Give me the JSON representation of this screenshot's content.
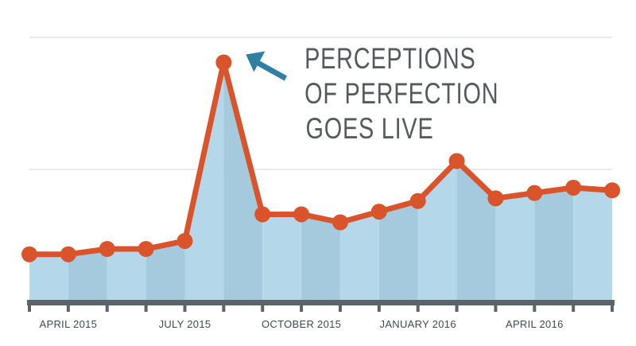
{
  "chart_data": {
    "type": "area",
    "title": "",
    "xlabel": "",
    "ylabel": "",
    "x": [
      "2015-03",
      "2015-04",
      "2015-05",
      "2015-06",
      "2015-07",
      "2015-08",
      "2015-09",
      "2015-10",
      "2015-11",
      "2015-12",
      "2016-01",
      "2016-02",
      "2016-03",
      "2016-04",
      "2016-05",
      "2016-06"
    ],
    "values": [
      18,
      18,
      20,
      20,
      23,
      90,
      33,
      33,
      30,
      34,
      38,
      53,
      39,
      41,
      43,
      42
    ],
    "ylim": [
      0,
      100
    ],
    "grid": true,
    "y_axis_labels": false,
    "x_tick_labels": [
      "APRIL 2015",
      "JULY 2015",
      "OCTOBER 2015",
      "JANUARY 2016",
      "APRIL 2016"
    ],
    "x_tick_label_months": [
      "2015-04",
      "2015-07",
      "2015-10",
      "2016-01",
      "2016-04"
    ],
    "annotation": {
      "lines": [
        "PERCEPTIONS",
        "OF PERFECTION",
        "GOES LIVE"
      ],
      "points_to": "2015-08"
    },
    "colors": {
      "line": "#d9532b",
      "area_light": "#b4d8ea",
      "area_dark": "#a5cadd",
      "axis": "#5c6369",
      "arrow": "#2e7fa3",
      "annotation_text": "#555a5e",
      "tick_text": "#3f4a52",
      "grid": "#dddddd"
    }
  }
}
